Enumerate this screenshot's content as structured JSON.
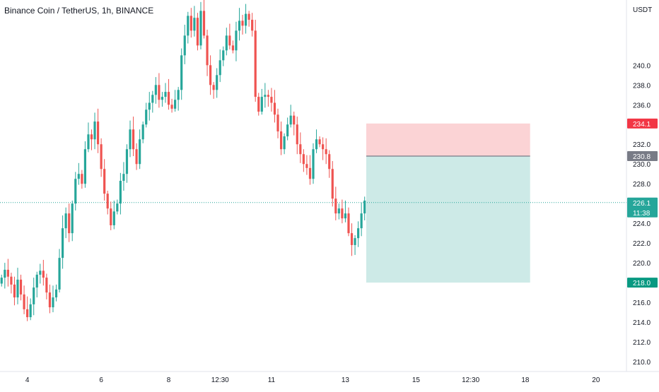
{
  "chart_data": {
    "type": "candlestick",
    "title": "Binance Coin / TetherUS, 1h, BINANCE",
    "currency": "USDT",
    "ylim": [
      209.0,
      246.6
    ],
    "y_ticks": [
      210.0,
      212.0,
      214.0,
      216.0,
      218.0,
      220.0,
      222.0,
      224.0,
      226.0,
      228.0,
      230.0,
      232.0,
      234.0,
      236.0,
      238.0,
      240.0
    ],
    "x_ticks": [
      {
        "label": "4",
        "bar": 8
      },
      {
        "label": "6",
        "bar": 31
      },
      {
        "label": "8",
        "bar": 52
      },
      {
        "label": "12:30",
        "bar": 68
      },
      {
        "label": "11",
        "bar": 84
      },
      {
        "label": "13",
        "bar": 107
      },
      {
        "label": "15",
        "bar": 129
      },
      {
        "label": "12:30",
        "bar": 146
      },
      {
        "label": "18",
        "bar": 163
      },
      {
        "label": "20",
        "bar": 185
      }
    ],
    "bars": 195,
    "closes": [
      218.5,
      219.3,
      218.6,
      217.8,
      216.5,
      218.3,
      216.8,
      215.3,
      214.5,
      215.8,
      217.5,
      218.8,
      219.2,
      218.5,
      217.0,
      215.5,
      216.5,
      217.3,
      220.5,
      223.5,
      225.0,
      223.0,
      226.0,
      228.5,
      229.0,
      228.0,
      231.5,
      233.0,
      232.5,
      234.3,
      232.0,
      229.5,
      227.0,
      225.5,
      223.8,
      225.2,
      226.0,
      228.3,
      229.0,
      231.5,
      233.5,
      231.5,
      230.0,
      232.5,
      234.0,
      235.5,
      236.2,
      237.0,
      238.0,
      236.5,
      236.8,
      237.3,
      236.0,
      235.6,
      236.5,
      237.5,
      241.0,
      243.0,
      245.0,
      243.5,
      244.8,
      242.0,
      245.5,
      243.0,
      240.0,
      238.0,
      237.5,
      239.0,
      240.5,
      241.5,
      243.0,
      242.0,
      241.5,
      243.5,
      244.5,
      244.0,
      245.2,
      244.6,
      243.5,
      236.8,
      235.3,
      236.8,
      237.0,
      236.8,
      236.2,
      235.0,
      233.3,
      231.5,
      232.8,
      234.0,
      234.9,
      234.0,
      232.0,
      231.0,
      230.0,
      229.6,
      228.5,
      231.5,
      232.5,
      232.0,
      231.5,
      231.0,
      229.5,
      226.5,
      225.0,
      225.5,
      224.5,
      225.0,
      223.0,
      221.8,
      222.5,
      223.5,
      225.0,
      226.3
    ],
    "levels": {
      "current": {
        "value": 226.1,
        "countdown": "11:38",
        "color": "#26a69a"
      },
      "stop_loss": {
        "value": 234.1,
        "color": "#f23645"
      },
      "entry": {
        "value": 230.8,
        "color": "#787b86"
      },
      "take_profit": {
        "value": 218.0,
        "color": "#089981"
      }
    },
    "position": {
      "type": "short",
      "start_bar": 114,
      "end_bar": 165,
      "risk_color": "#fbd3d5",
      "reward_color": "#cdeae7"
    },
    "grid": false,
    "colors": {
      "up": "#26a69a",
      "down": "#ef5350"
    }
  }
}
